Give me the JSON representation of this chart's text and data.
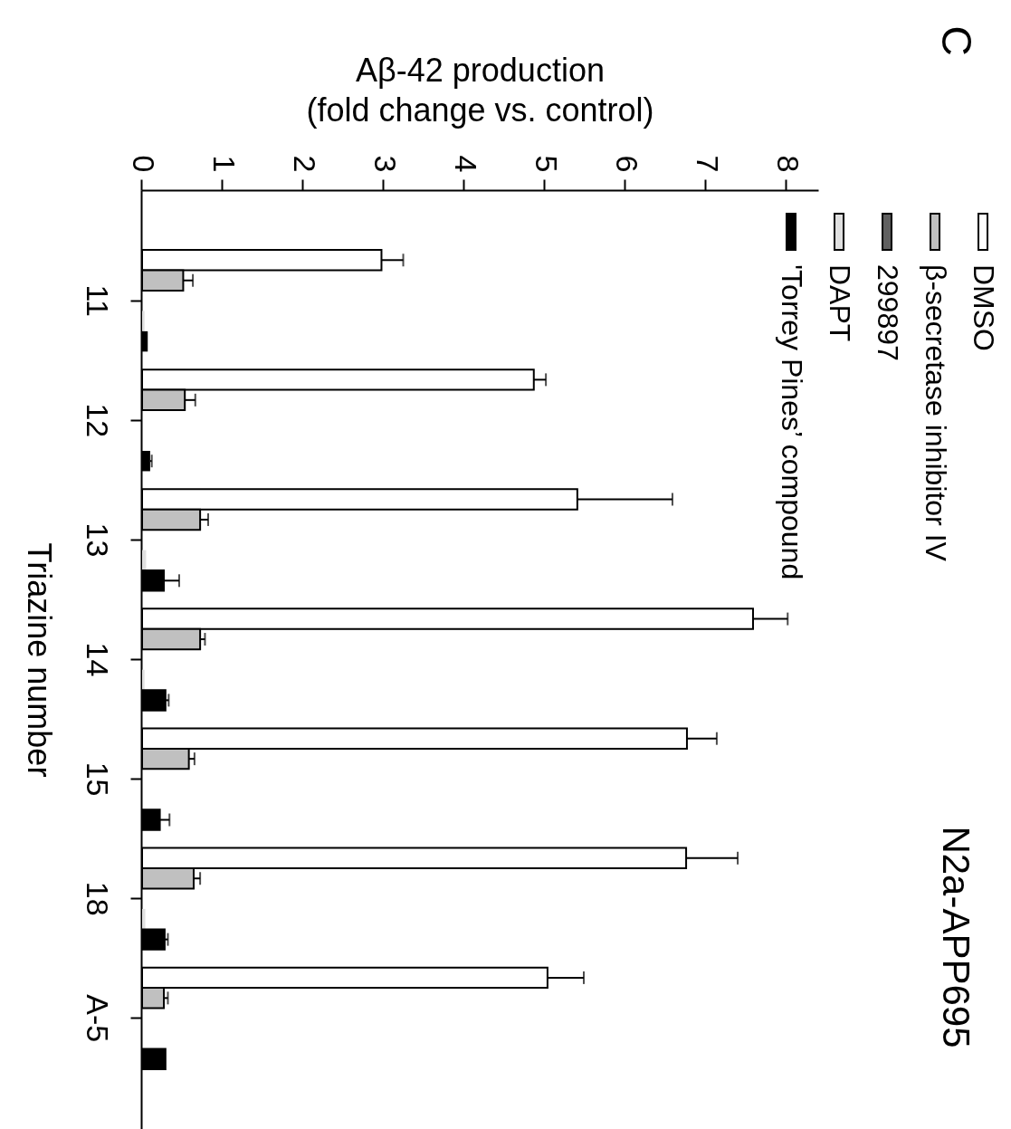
{
  "chart_data": {
    "type": "bar",
    "orientation": "horizontal",
    "title": "N2a-APP695",
    "annotations": [
      "C"
    ],
    "xlabel": "Aβ-42 production\n(fold change vs. control)",
    "ylabel": "Triazine number",
    "categories": [
      "11",
      "12",
      "13",
      "14",
      "15",
      "18",
      "A-5"
    ],
    "xlim": [
      0,
      8.4
    ],
    "xticks": [
      0,
      1,
      2,
      3,
      4,
      5,
      6,
      7,
      8
    ],
    "legend": "top right",
    "series": [
      {
        "name": "DMSO",
        "color": "#ffffff",
        "values": [
          2.97,
          4.86,
          5.4,
          7.58,
          6.76,
          6.75,
          5.03
        ],
        "errors": [
          0.27,
          0.15,
          1.18,
          0.43,
          0.37,
          0.64,
          0.45
        ]
      },
      {
        "name": "β-secretase inhibitor IV",
        "color": "#c0c0c0",
        "values": [
          0.51,
          0.53,
          0.72,
          0.72,
          0.58,
          0.64,
          0.27
        ],
        "errors": [
          0.12,
          0.13,
          0.1,
          0.06,
          0.07,
          0.08,
          0.05
        ]
      },
      {
        "name": "299897",
        "color": "#606060",
        "values": [
          0,
          0,
          0,
          0,
          0,
          0,
          0
        ]
      },
      {
        "name": "DAPT",
        "color": "#e0e0e0",
        "values": [
          0.03,
          0,
          0.05,
          0.03,
          0,
          0.04,
          0
        ]
      },
      {
        "name": "'Torrey Pines’ compound",
        "color": "#000000",
        "values": [
          0.07,
          0.1,
          0.27,
          0.29,
          0.22,
          0.28,
          0.29
        ],
        "errors": [
          null,
          0.02,
          0.19,
          0.04,
          0.12,
          0.04,
          null
        ]
      }
    ]
  }
}
